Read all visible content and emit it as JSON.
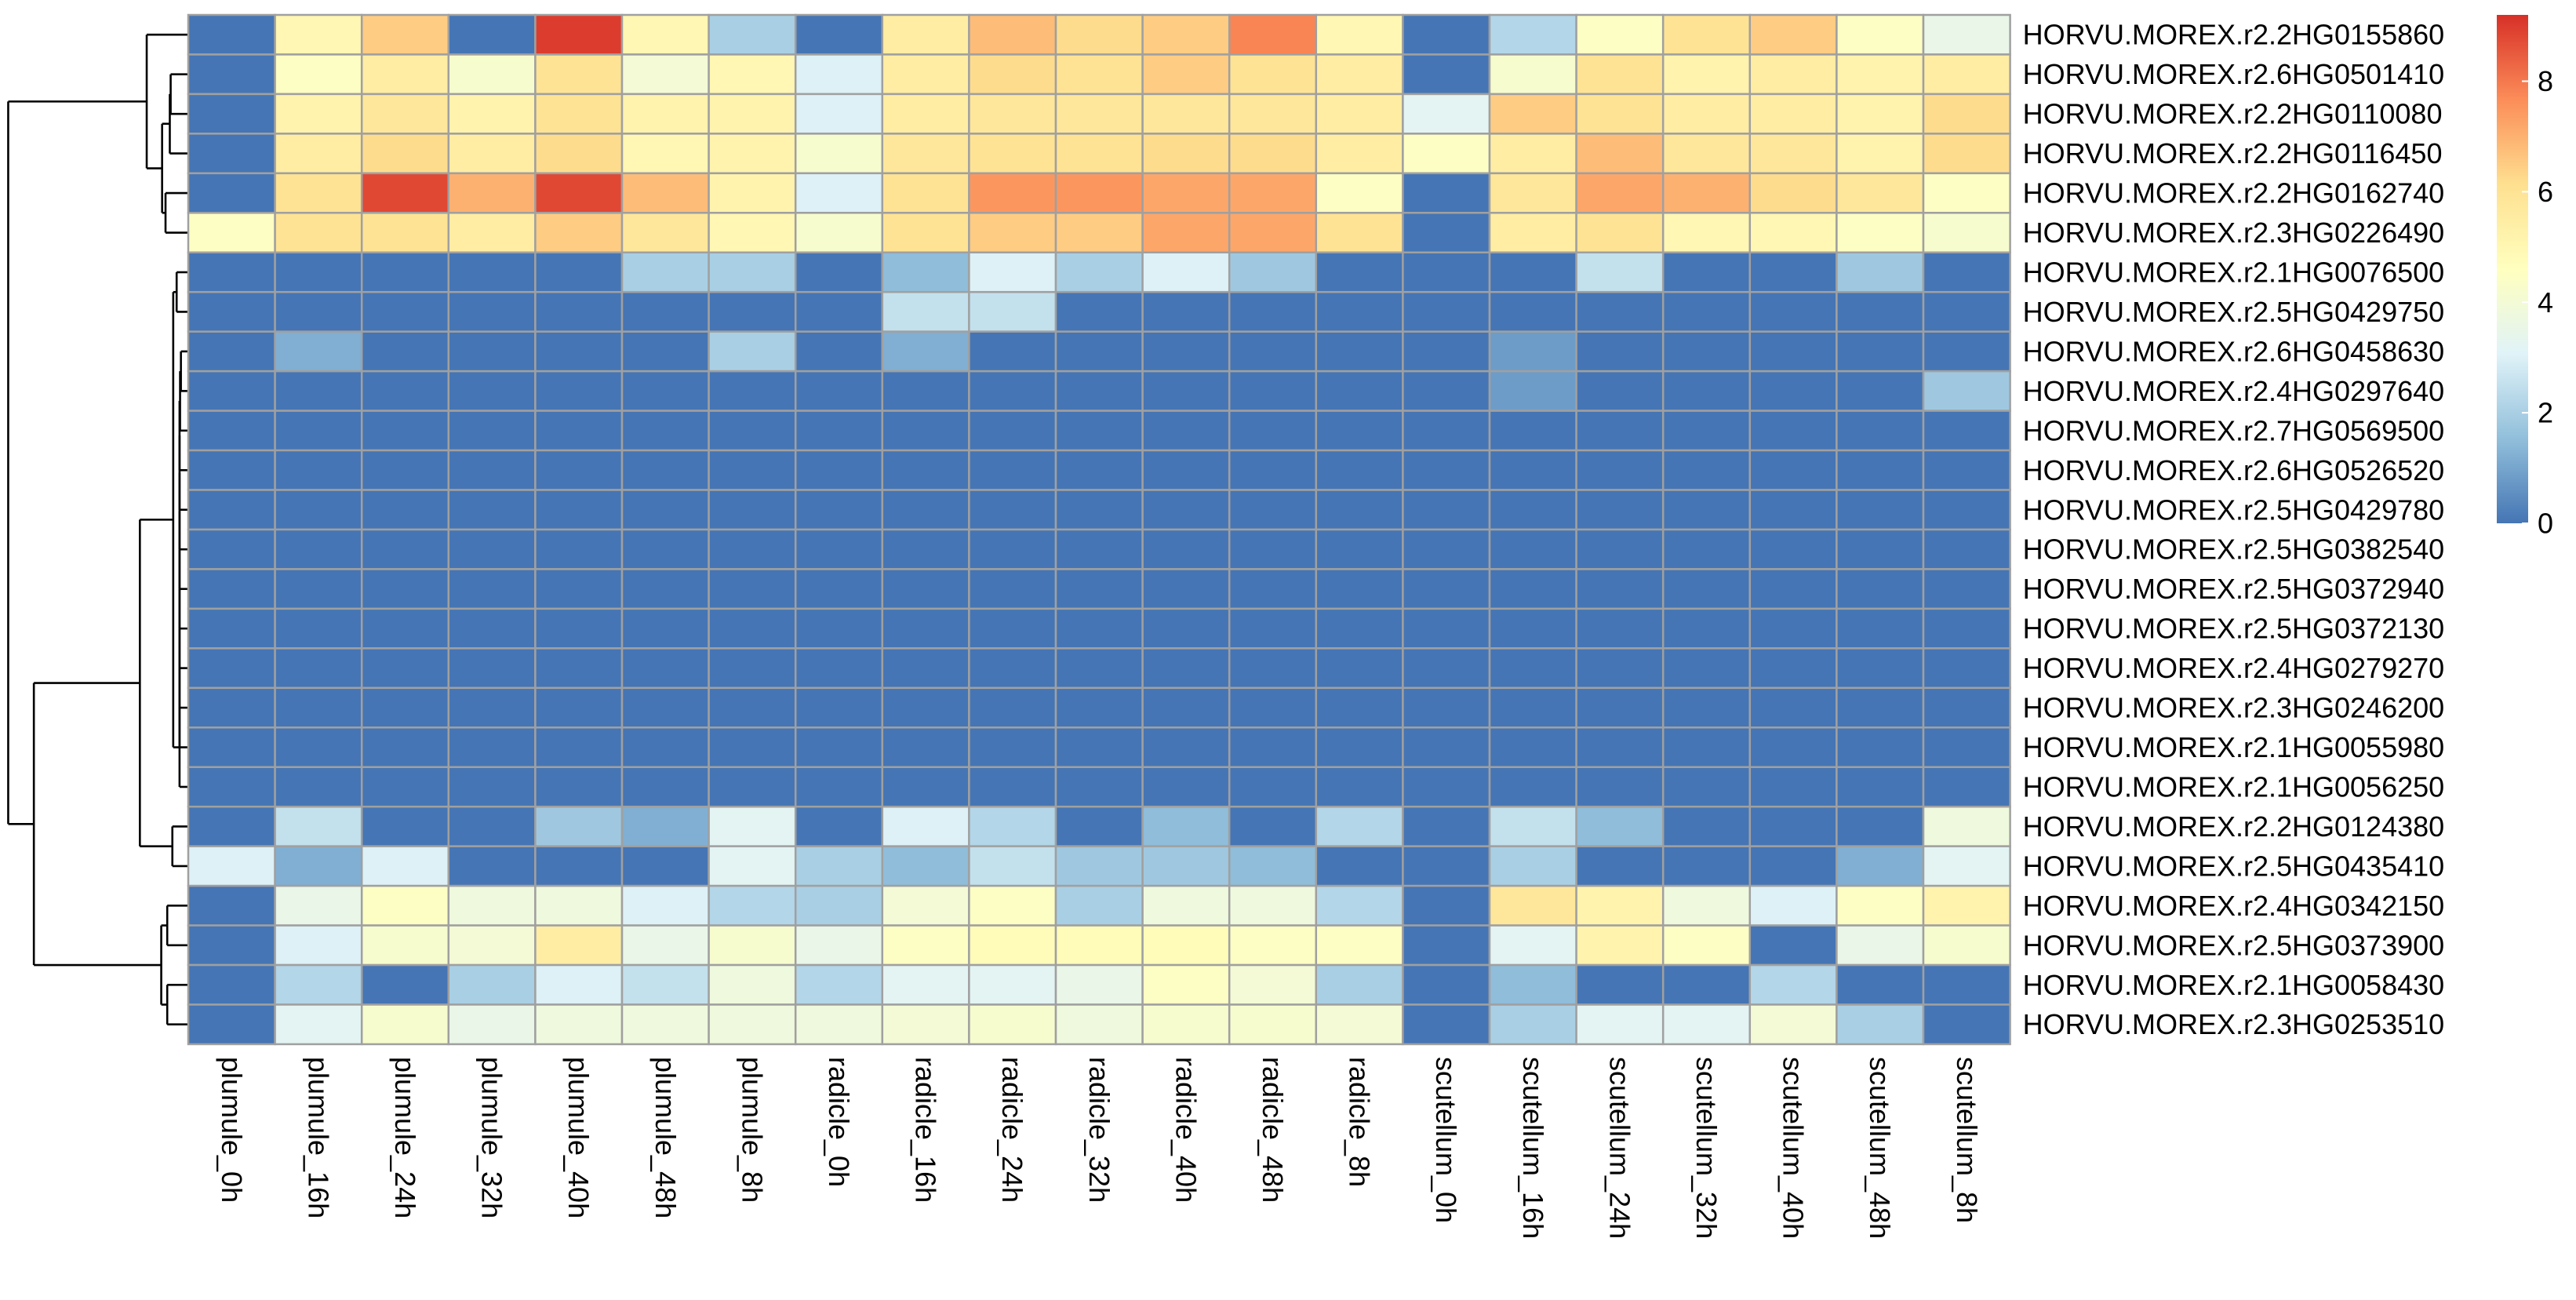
{
  "chart_data": {
    "type": "heatmap",
    "columns": [
      "plumule_0h",
      "plumule_16h",
      "plumule_24h",
      "plumule_32h",
      "plumule_40h",
      "plumule_48h",
      "plumule_8h",
      "radicle_0h",
      "radicle_16h",
      "radicle_24h",
      "radicle_32h",
      "radicle_40h",
      "radicle_48h",
      "radicle_8h",
      "scutellum_0h",
      "scutellum_16h",
      "scutellum_24h",
      "scutellum_32h",
      "scutellum_40h",
      "scutellum_48h",
      "scutellum_8h"
    ],
    "rows": [
      "HORVU.MOREX.r2.2HG0155860",
      "HORVU.MOREX.r2.6HG0501410",
      "HORVU.MOREX.r2.2HG0110080",
      "HORVU.MOREX.r2.2HG0116450",
      "HORVU.MOREX.r2.2HG0162740",
      "HORVU.MOREX.r2.3HG0226490",
      "HORVU.MOREX.r2.1HG0076500",
      "HORVU.MOREX.r2.5HG0429750",
      "HORVU.MOREX.r2.6HG0458630",
      "HORVU.MOREX.r2.4HG0297640",
      "HORVU.MOREX.r2.7HG0569500",
      "HORVU.MOREX.r2.6HG0526520",
      "HORVU.MOREX.r2.5HG0429780",
      "HORVU.MOREX.r2.5HG0382540",
      "HORVU.MOREX.r2.5HG0372940",
      "HORVU.MOREX.r2.5HG0372130",
      "HORVU.MOREX.r2.4HG0279270",
      "HORVU.MOREX.r2.3HG0246200",
      "HORVU.MOREX.r2.1HG0055980",
      "HORVU.MOREX.r2.1HG0056250",
      "HORVU.MOREX.r2.2HG0124380",
      "HORVU.MOREX.r2.5HG0435410",
      "HORVU.MOREX.r2.4HG0342150",
      "HORVU.MOREX.r2.5HG0373900",
      "HORVU.MOREX.r2.1HG0058430",
      "HORVU.MOREX.r2.3HG0253510"
    ],
    "values": [
      [
        0,
        5,
        6.5,
        0,
        9,
        5,
        2,
        0,
        5.5,
        6.8,
        6.2,
        6.5,
        7.8,
        5,
        0,
        2.2,
        4.5,
        6,
        6.5,
        4.5,
        3.5
      ],
      [
        0,
        4.5,
        5.5,
        4.2,
        6,
        4,
        5,
        3,
        5.5,
        6.2,
        6,
        6.5,
        6,
        5.5,
        0,
        4.2,
        6,
        5.2,
        5.5,
        5.2,
        5.5
      ],
      [
        0,
        5.2,
        5.8,
        5.2,
        6,
        5.2,
        5.2,
        3,
        5.5,
        5.8,
        5.8,
        5.8,
        5.8,
        5.5,
        3.2,
        6.5,
        6,
        5.5,
        5.5,
        5.2,
        6.2
      ],
      [
        0,
        5.5,
        6.2,
        5.5,
        6.2,
        5,
        5.2,
        4.2,
        5.8,
        6,
        6,
        6.2,
        6.2,
        5.5,
        4.5,
        5.5,
        6.8,
        5.8,
        5.8,
        5.2,
        6.2
      ],
      [
        0,
        6,
        8.8,
        7,
        8.8,
        6.8,
        5.2,
        3,
        6,
        7.5,
        7.5,
        7.2,
        7.2,
        4.5,
        0,
        5.8,
        7.2,
        7,
        6.2,
        5.8,
        4.5
      ],
      [
        4.5,
        6,
        6,
        5.5,
        6.5,
        5.8,
        5,
        4.2,
        6,
        6.5,
        6.5,
        7.2,
        7.2,
        6,
        0,
        5.5,
        6,
        5,
        5,
        4.5,
        4.2
      ],
      [
        0,
        0,
        0,
        0,
        0,
        2,
        2,
        0,
        1.5,
        3,
        2,
        3,
        1.8,
        0,
        0,
        0,
        2.5,
        0,
        0,
        1.8,
        0
      ],
      [
        0,
        0,
        0,
        0,
        0,
        0,
        0,
        0,
        2.5,
        2.5,
        0,
        0,
        0,
        0,
        0,
        0,
        0,
        0,
        0,
        0,
        0
      ],
      [
        0,
        1.2,
        0,
        0,
        0,
        0,
        2,
        0,
        1.2,
        0,
        0,
        0,
        0,
        0,
        0,
        0.8,
        0,
        0,
        0,
        0,
        0
      ],
      [
        0,
        0,
        0,
        0,
        0,
        0,
        0,
        0,
        0,
        0,
        0,
        0,
        0,
        0,
        0,
        0.8,
        0,
        0,
        0,
        0,
        1.8
      ],
      [
        0,
        0,
        0,
        0,
        0,
        0,
        0,
        0,
        0,
        0,
        0,
        0,
        0,
        0,
        0,
        0,
        0,
        0,
        0,
        0,
        0
      ],
      [
        0,
        0,
        0,
        0,
        0,
        0,
        0,
        0,
        0,
        0,
        0,
        0,
        0,
        0,
        0,
        0,
        0,
        0,
        0,
        0,
        0
      ],
      [
        0,
        0,
        0,
        0,
        0,
        0,
        0,
        0,
        0,
        0,
        0,
        0,
        0,
        0,
        0,
        0,
        0,
        0,
        0,
        0,
        0
      ],
      [
        0,
        0,
        0,
        0,
        0,
        0,
        0,
        0,
        0,
        0,
        0,
        0,
        0,
        0,
        0,
        0,
        0,
        0,
        0,
        0,
        0
      ],
      [
        0,
        0,
        0,
        0,
        0,
        0,
        0,
        0,
        0,
        0,
        0,
        0,
        0,
        0,
        0,
        0,
        0,
        0,
        0,
        0,
        0
      ],
      [
        0,
        0,
        0,
        0,
        0,
        0,
        0,
        0,
        0,
        0,
        0,
        0,
        0,
        0,
        0,
        0,
        0,
        0,
        0,
        0,
        0
      ],
      [
        0,
        0,
        0,
        0,
        0,
        0,
        0,
        0,
        0,
        0,
        0,
        0,
        0,
        0,
        0,
        0,
        0,
        0,
        0,
        0,
        0
      ],
      [
        0,
        0,
        0,
        0,
        0,
        0,
        0,
        0,
        0,
        0,
        0,
        0,
        0,
        0,
        0,
        0,
        0,
        0,
        0,
        0,
        0
      ],
      [
        0,
        0,
        0,
        0,
        0,
        0,
        0,
        0,
        0,
        0,
        0,
        0,
        0,
        0,
        0,
        0,
        0,
        0,
        0,
        0,
        0
      ],
      [
        0,
        0,
        0,
        0,
        0,
        0,
        0,
        0,
        0,
        0,
        0,
        0,
        0,
        0,
        0,
        0,
        0,
        0,
        0,
        0,
        0
      ],
      [
        0,
        2.5,
        0,
        0,
        1.8,
        1.2,
        3.2,
        0,
        3,
        2.2,
        0,
        1.5,
        0,
        2.2,
        0,
        2.5,
        1.5,
        0,
        0,
        0,
        3.8
      ],
      [
        3,
        1.2,
        3,
        0,
        0,
        0,
        3.2,
        2,
        1.5,
        2.5,
        1.8,
        1.8,
        1.5,
        0,
        0,
        2,
        0,
        0,
        0,
        1.2,
        3.2
      ],
      [
        0,
        3.5,
        4.5,
        3.8,
        3.8,
        3,
        2.2,
        2,
        4,
        4.5,
        2,
        3.8,
        3.8,
        2.2,
        0,
        5.8,
        5.2,
        3.8,
        3,
        4.5,
        5.2
      ],
      [
        0,
        3,
        4.2,
        4,
        5.5,
        3.5,
        4.2,
        3.5,
        4.5,
        4.8,
        4.8,
        4.8,
        4.5,
        4.5,
        0,
        3.2,
        5.2,
        4.5,
        0,
        3.5,
        4.2
      ],
      [
        0,
        2.2,
        0,
        2,
        3,
        2.5,
        3.8,
        2.2,
        3.2,
        3.2,
        3.5,
        4.5,
        4,
        2,
        0,
        1.5,
        0,
        0,
        2.2,
        0,
        0
      ],
      [
        0,
        3.2,
        4.2,
        3.5,
        3.8,
        3.8,
        3.8,
        3.8,
        4,
        4.2,
        3.8,
        4.2,
        4.2,
        4,
        0,
        2,
        3.2,
        3.2,
        4,
        2,
        0
      ]
    ],
    "color_scale": {
      "min": 0,
      "max": 9.2,
      "colors": [
        "#4575b4",
        "#91bfdb",
        "#e0f3f8",
        "#ffffbf",
        "#fee090",
        "#fc8d59",
        "#d73027"
      ]
    },
    "legend_ticks": [
      0,
      2,
      4,
      6,
      8
    ],
    "legend_position": "right",
    "row_dendrogram": true,
    "cell_border_color": "#a0a0a0",
    "dendrogram_color": "#000000"
  }
}
